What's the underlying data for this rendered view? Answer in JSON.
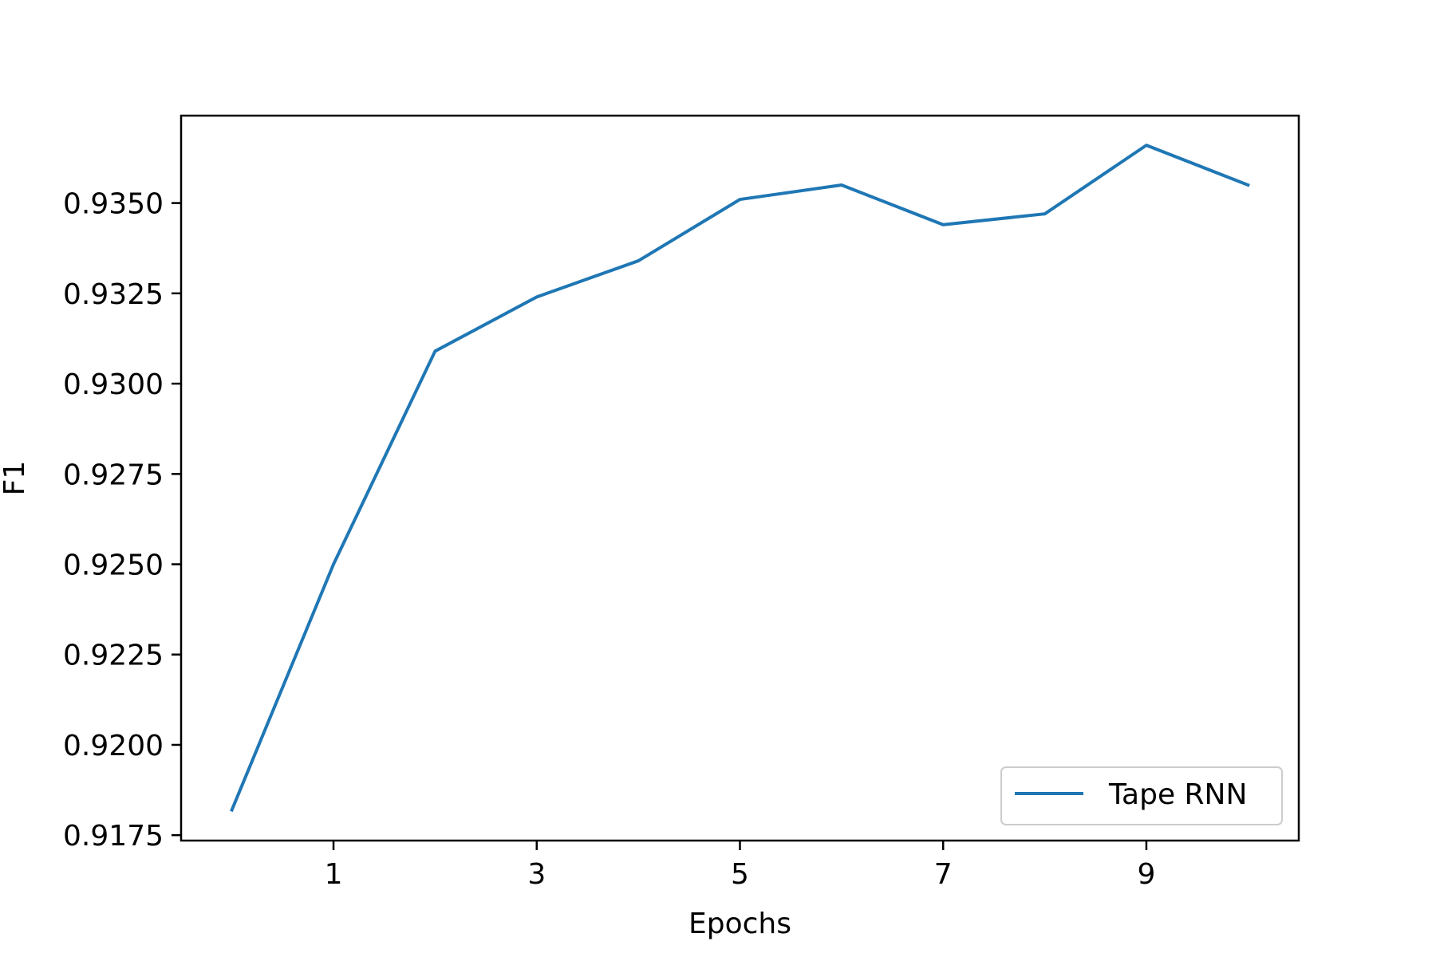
{
  "chart_data": {
    "type": "line",
    "title": "",
    "xlabel": "Epochs",
    "ylabel": "F1",
    "x": [
      0,
      1,
      2,
      3,
      4,
      5,
      6,
      7,
      8,
      9,
      10
    ],
    "x_ticks": [
      1,
      3,
      5,
      7,
      9
    ],
    "x_tick_labels": [
      "1",
      "3",
      "5",
      "7",
      "9"
    ],
    "xlim": [
      -0.5,
      10.5
    ],
    "y_ticks": [
      0.9175,
      0.92,
      0.9225,
      0.925,
      0.9275,
      0.93,
      0.9325,
      0.935
    ],
    "y_tick_labels": [
      "0.9175",
      "0.9200",
      "0.9225",
      "0.9250",
      "0.9275",
      "0.9300",
      "0.9325",
      "0.9350"
    ],
    "ylim": [
      0.91735,
      0.93742
    ],
    "grid": false,
    "legend_position": "lower right",
    "series": [
      {
        "name": "Tape RNN",
        "color": "#1f77b4",
        "values": [
          0.9182,
          0.925,
          0.9309,
          0.9324,
          0.9334,
          0.9351,
          0.9355,
          0.9344,
          0.9347,
          0.9366,
          0.9355
        ]
      }
    ]
  }
}
